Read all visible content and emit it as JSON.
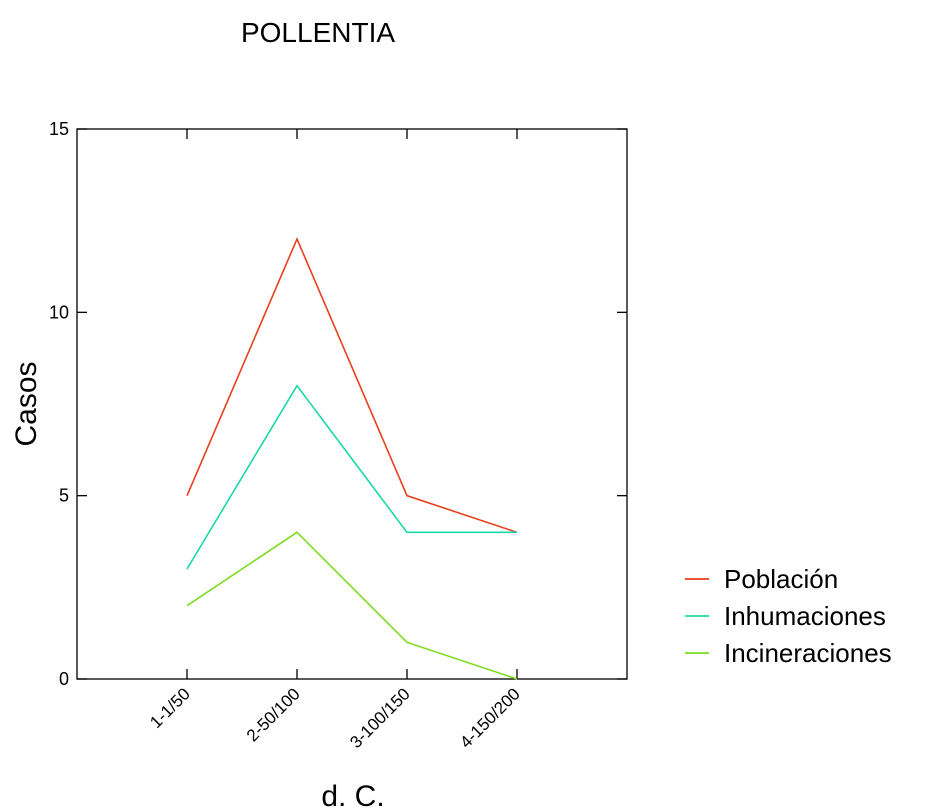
{
  "chart_data": {
    "type": "line",
    "title": "POLLENTIA",
    "xlabel": "d. C.",
    "ylabel": "Casos",
    "categories": [
      "1-1/50",
      "2-50/100",
      "3-100/150",
      "4-150/200"
    ],
    "ylim": [
      0,
      15
    ],
    "yticks": [
      "0",
      "5",
      "10",
      "15"
    ],
    "grid": false,
    "legend_position": "right",
    "series": [
      {
        "name": "Población",
        "color": "#e8401c",
        "values": [
          5,
          12,
          5,
          4
        ]
      },
      {
        "name": "Inhumaciones",
        "color": "#1ad9a6",
        "values": [
          3,
          8,
          4,
          4
        ]
      },
      {
        "name": "Incineraciones",
        "color": "#7ddc1f",
        "values": [
          2,
          4,
          1,
          0
        ]
      }
    ]
  }
}
